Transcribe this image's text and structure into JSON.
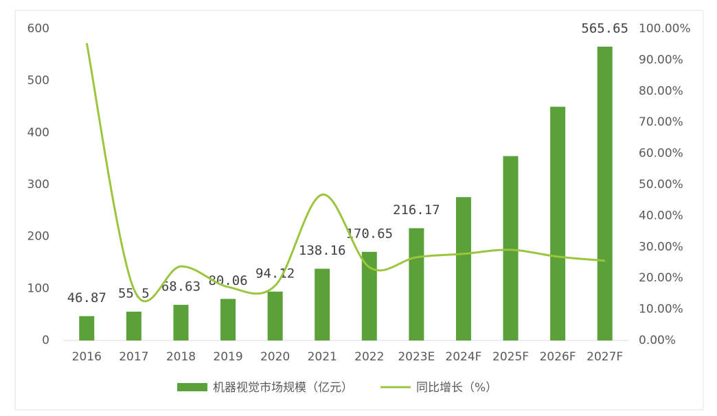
{
  "chart_data": {
    "type": "bar-line",
    "categories": [
      "2016",
      "2017",
      "2018",
      "2019",
      "2020",
      "2021",
      "2022",
      "2023E",
      "2024F",
      "2025F",
      "2026F",
      "2027F"
    ],
    "series": [
      {
        "name": "机器视觉市场规模（亿元）",
        "color": "#5aa13a",
        "type": "bar",
        "values": [
          46.87,
          55.5,
          68.63,
          80.06,
          94.12,
          138.16,
          170.65,
          216.17,
          276,
          355,
          450,
          565.65
        ],
        "value_labels": [
          "46.87",
          "55.5",
          "68.63",
          "80.06",
          "94.12",
          "138.16",
          "170.65",
          "216.17",
          null,
          null,
          null,
          "565.65"
        ]
      },
      {
        "name": "同比增长（%）",
        "color": "#9bc53d",
        "type": "line",
        "axis": "y2",
        "values": [
          95.4,
          16.5,
          23.8,
          17.2,
          17.6,
          46.8,
          23.5,
          26.7,
          27.8,
          29.1,
          26.9,
          25.6
        ]
      }
    ],
    "ylim": [
      0,
      600
    ],
    "yticks": [
      0,
      100,
      200,
      300,
      400,
      500,
      600
    ],
    "y2lim": [
      0,
      100
    ],
    "y2ticks": [
      {
        "value": 0,
        "label": "0.00%"
      },
      {
        "value": 10,
        "label": "10.00%"
      },
      {
        "value": 20,
        "label": "20.00%"
      },
      {
        "value": 30,
        "label": "30.00%"
      },
      {
        "value": 40,
        "label": "40.00%"
      },
      {
        "value": 50,
        "label": "50.00%"
      },
      {
        "value": 60,
        "label": "60.00%"
      },
      {
        "value": 70,
        "label": "70.00%"
      },
      {
        "value": 80,
        "label": "80.00%"
      },
      {
        "value": 90,
        "label": "90.00%"
      },
      {
        "value": 100,
        "label": "100.00%"
      }
    ],
    "legend": "bottom"
  }
}
